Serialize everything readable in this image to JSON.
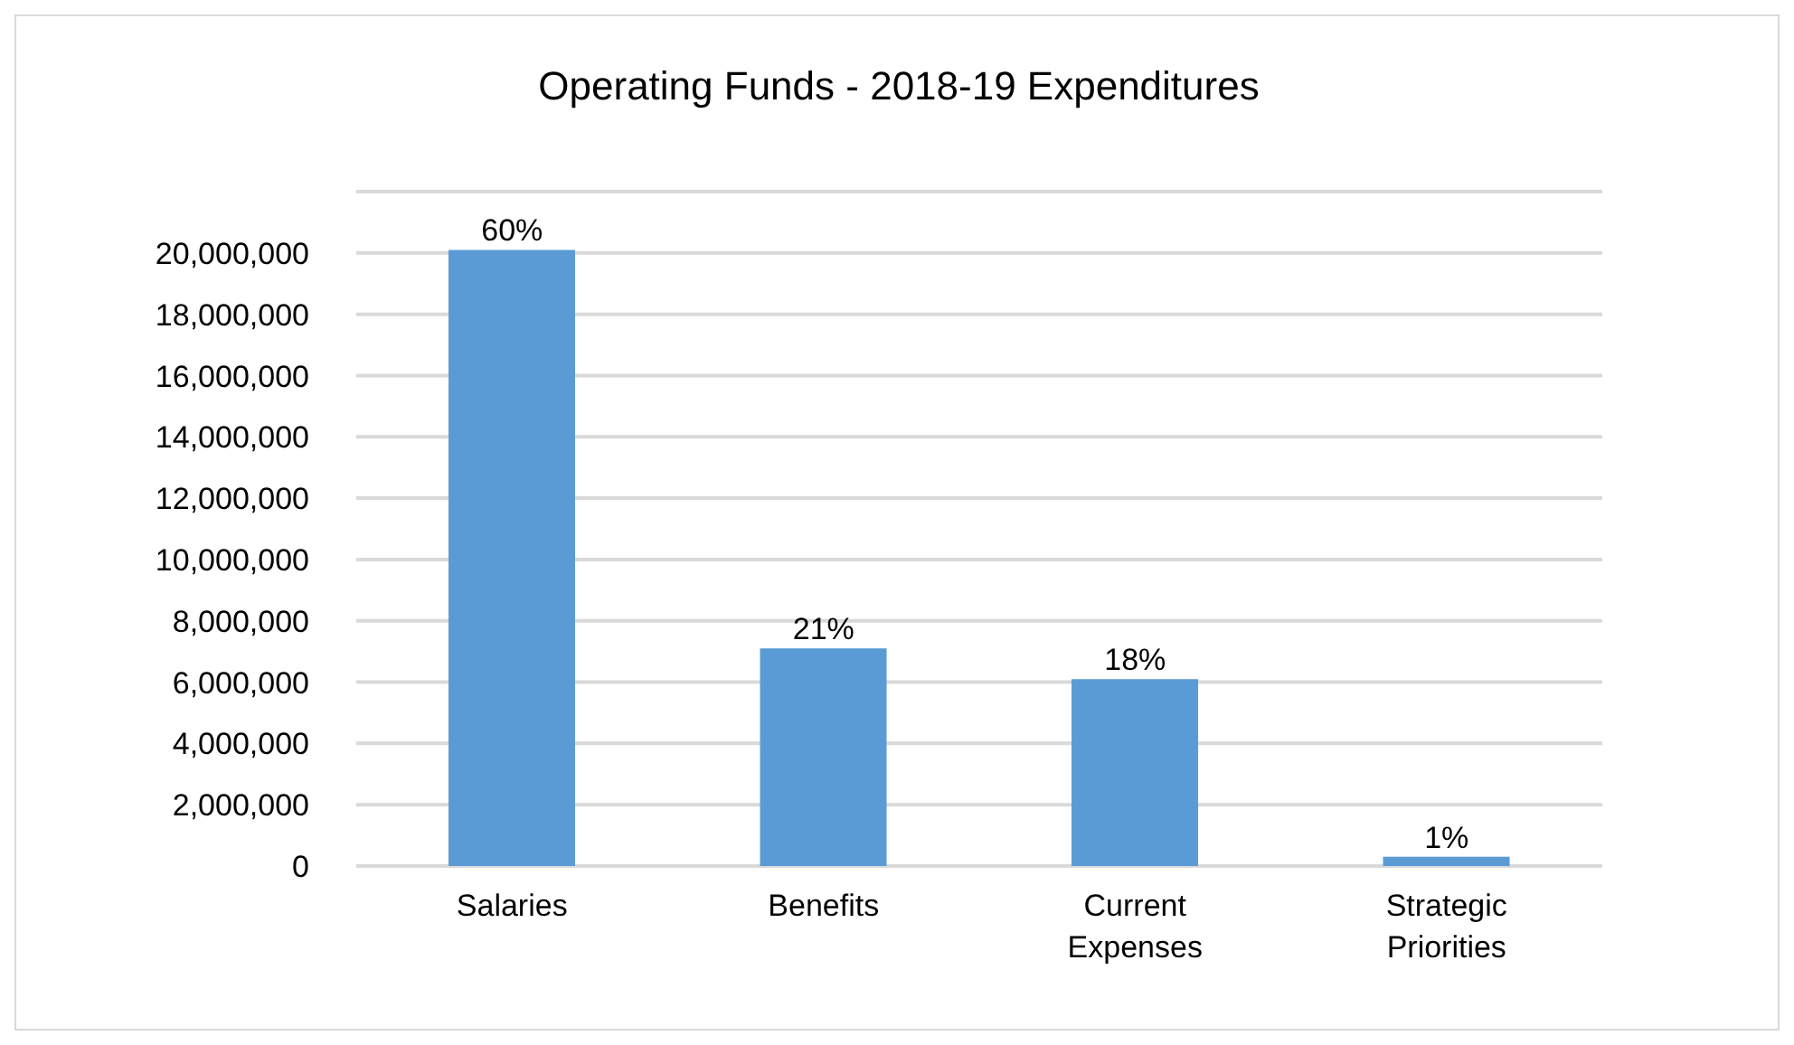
{
  "chart_data": {
    "type": "bar",
    "title": "Operating Funds - 2018-19 Expenditures",
    "categories": [
      "Salaries",
      "Benefits",
      "Current Expenses",
      "Strategic Priorities"
    ],
    "values": [
      20100000,
      7100000,
      6100000,
      300000
    ],
    "color": "#5b9bd5",
    "annotations": [
      {
        "text": "60%",
        "x": "Salaries",
        "y": 20100000
      },
      {
        "text": "21%",
        "x": "Benefits",
        "y": 7100000
      },
      {
        "text": "18%",
        "x": "Current Expenses",
        "y": 6100000
      },
      {
        "text": "1%",
        "x": "Strategic Priorities",
        "y": 300000
      }
    ],
    "ylim": [
      0,
      22000000
    ],
    "yticks": [
      {
        "value": 0,
        "label": "0"
      },
      {
        "value": 2000000,
        "label": "2,000,000"
      },
      {
        "value": 4000000,
        "label": "4,000,000"
      },
      {
        "value": 6000000,
        "label": "6,000,000"
      },
      {
        "value": 8000000,
        "label": "8,000,000"
      },
      {
        "value": 10000000,
        "label": "10,000,000"
      },
      {
        "value": 12000000,
        "label": "12,000,000"
      },
      {
        "value": 14000000,
        "label": "14,000,000"
      },
      {
        "value": 16000000,
        "label": "16,000,000"
      },
      {
        "value": 18000000,
        "label": "18,000,000"
      },
      {
        "value": 20000000,
        "label": "20,000,000"
      },
      {
        "value": 22000000,
        "label": null
      }
    ],
    "grid": "y"
  }
}
